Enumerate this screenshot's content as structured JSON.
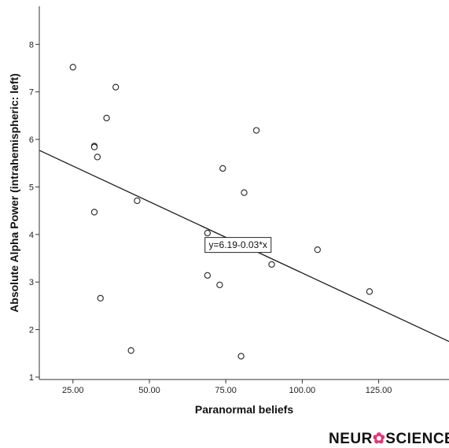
{
  "chart_data": {
    "type": "scatter",
    "title": "",
    "xlabel": "Paranormal beliefs",
    "ylabel": "Absolute Alpha Power (intrahemispheric: left)",
    "xlim": [
      14,
      148
    ],
    "ylim": [
      0.95,
      8.8
    ],
    "x_ticks": [
      25,
      50,
      75,
      100,
      125
    ],
    "x_tick_labels": [
      "25.00",
      "50.00",
      "75.00",
      "100.00",
      "125.00"
    ],
    "y_ticks": [
      1,
      2,
      3,
      4,
      5,
      6,
      7,
      8
    ],
    "y_tick_labels": [
      "1",
      "2",
      "3",
      "4",
      "5",
      "6",
      "7",
      "8"
    ],
    "grid": false,
    "points": [
      {
        "x": 25,
        "y": 7.52
      },
      {
        "x": 39,
        "y": 7.1
      },
      {
        "x": 36,
        "y": 6.45
      },
      {
        "x": 32,
        "y": 5.86
      },
      {
        "x": 32,
        "y": 5.84
      },
      {
        "x": 33,
        "y": 5.63
      },
      {
        "x": 32,
        "y": 4.47
      },
      {
        "x": 46,
        "y": 4.71
      },
      {
        "x": 34,
        "y": 2.66
      },
      {
        "x": 44,
        "y": 1.56
      },
      {
        "x": 85,
        "y": 6.19
      },
      {
        "x": 74,
        "y": 5.39
      },
      {
        "x": 81,
        "y": 4.88
      },
      {
        "x": 69,
        "y": 4.03
      },
      {
        "x": 69,
        "y": 3.14
      },
      {
        "x": 73,
        "y": 2.94
      },
      {
        "x": 90,
        "y": 3.37
      },
      {
        "x": 105,
        "y": 3.68
      },
      {
        "x": 122,
        "y": 2.8
      },
      {
        "x": 80,
        "y": 1.44
      }
    ],
    "fit_line": {
      "intercept": 6.19,
      "slope": -0.03,
      "x_range": [
        14,
        148
      ]
    },
    "annotation": {
      "text": "y=6.19-0.03*x",
      "x": 79,
      "y": 3.78
    }
  },
  "logo": {
    "prefix": "NEUR",
    "o": "✿",
    "suffix": "SCIENCE"
  }
}
